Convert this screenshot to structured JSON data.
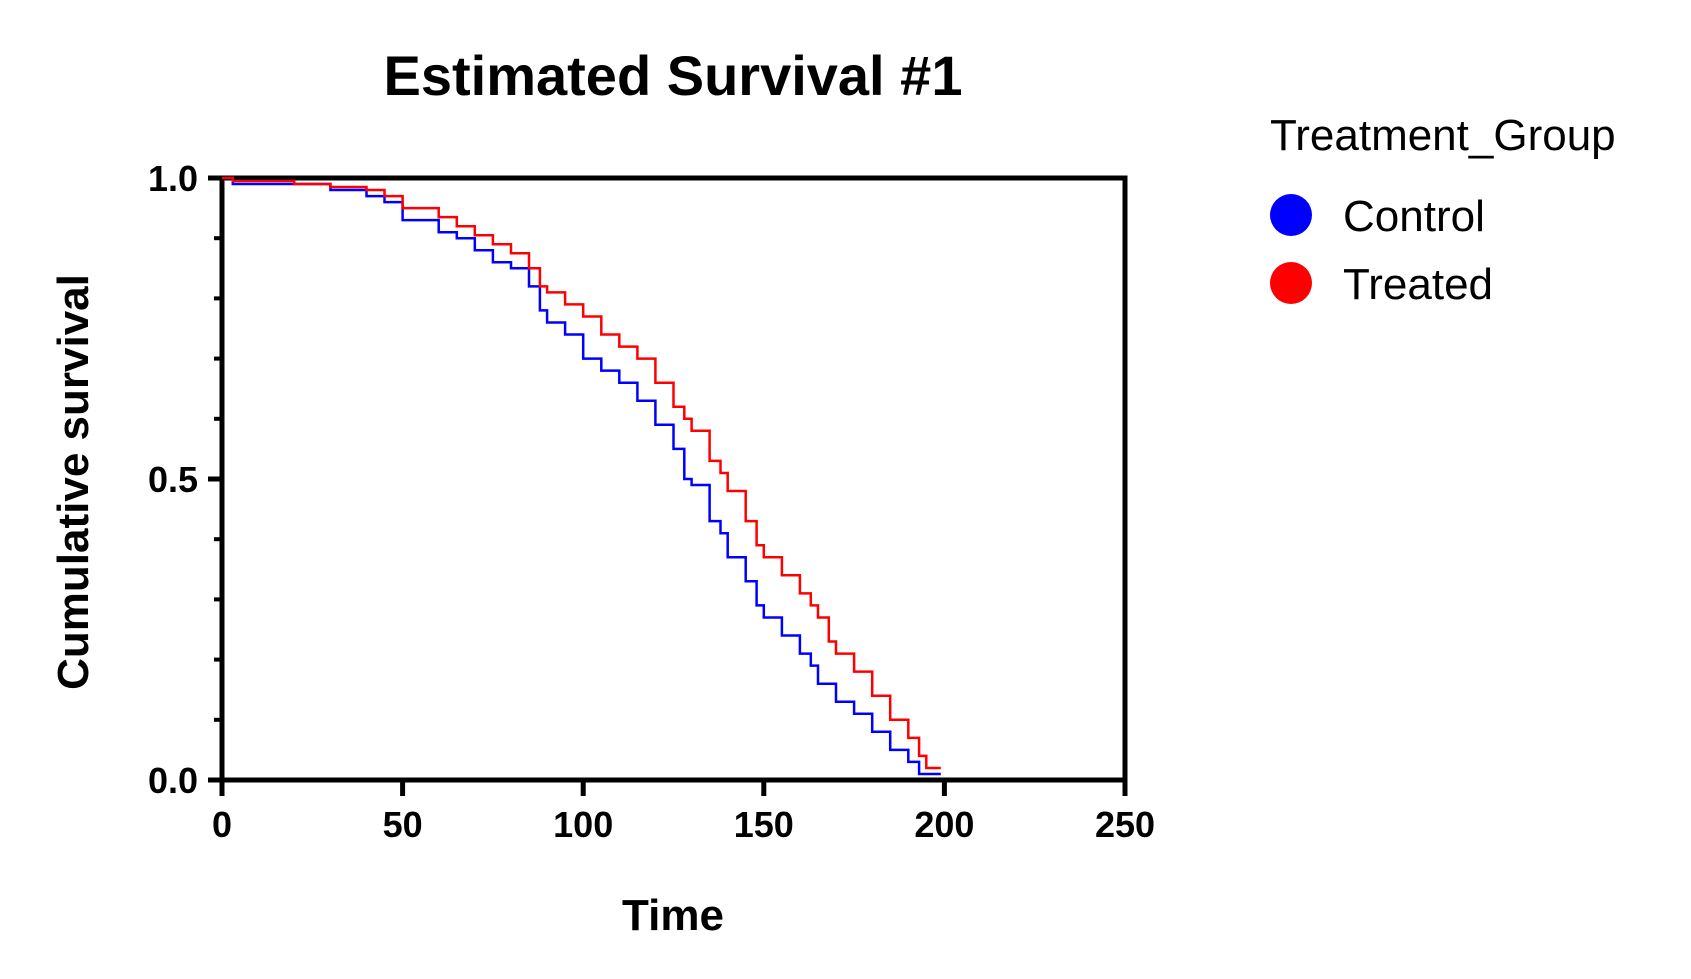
{
  "chart_data": {
    "type": "line",
    "title": "Estimated Survival #1",
    "xlabel": "Time",
    "ylabel": "Cumulative survival",
    "xlim": [
      0,
      250
    ],
    "ylim": [
      0,
      1
    ],
    "x_ticks": [
      "0",
      "50",
      "100",
      "150",
      "200",
      "250"
    ],
    "y_ticks": [
      "0.0",
      "0.5",
      "1.0"
    ],
    "grid": false,
    "legend": {
      "title": "Treatment_Group",
      "position": "right",
      "entries": [
        {
          "label": "Control",
          "color": "#0000ff"
        },
        {
          "label": "Treated",
          "color": "#ff0000"
        }
      ]
    },
    "series": [
      {
        "name": "Control",
        "color": "#0000ff",
        "points": [
          [
            0,
            1.0
          ],
          [
            3,
            0.99
          ],
          [
            20,
            0.99
          ],
          [
            30,
            0.98
          ],
          [
            40,
            0.97
          ],
          [
            45,
            0.96
          ],
          [
            50,
            0.93
          ],
          [
            60,
            0.91
          ],
          [
            65,
            0.9
          ],
          [
            70,
            0.88
          ],
          [
            75,
            0.86
          ],
          [
            80,
            0.85
          ],
          [
            85,
            0.82
          ],
          [
            88,
            0.78
          ],
          [
            90,
            0.76
          ],
          [
            95,
            0.74
          ],
          [
            100,
            0.7
          ],
          [
            105,
            0.68
          ],
          [
            110,
            0.66
          ],
          [
            115,
            0.63
          ],
          [
            120,
            0.59
          ],
          [
            125,
            0.55
          ],
          [
            128,
            0.5
          ],
          [
            130,
            0.49
          ],
          [
            135,
            0.43
          ],
          [
            138,
            0.41
          ],
          [
            140,
            0.37
          ],
          [
            145,
            0.33
          ],
          [
            148,
            0.29
          ],
          [
            150,
            0.27
          ],
          [
            155,
            0.24
          ],
          [
            160,
            0.21
          ],
          [
            163,
            0.19
          ],
          [
            165,
            0.16
          ],
          [
            170,
            0.13
          ],
          [
            175,
            0.11
          ],
          [
            180,
            0.08
          ],
          [
            185,
            0.05
          ],
          [
            190,
            0.03
          ],
          [
            193,
            0.01
          ],
          [
            199,
            0.01
          ]
        ]
      },
      {
        "name": "Treated",
        "color": "#ff0000",
        "points": [
          [
            0,
            1.0
          ],
          [
            3,
            0.995
          ],
          [
            20,
            0.99
          ],
          [
            30,
            0.985
          ],
          [
            40,
            0.98
          ],
          [
            45,
            0.97
          ],
          [
            50,
            0.95
          ],
          [
            60,
            0.935
          ],
          [
            65,
            0.92
          ],
          [
            70,
            0.905
          ],
          [
            75,
            0.89
          ],
          [
            80,
            0.875
          ],
          [
            85,
            0.85
          ],
          [
            88,
            0.82
          ],
          [
            90,
            0.81
          ],
          [
            95,
            0.79
          ],
          [
            100,
            0.77
          ],
          [
            105,
            0.74
          ],
          [
            110,
            0.72
          ],
          [
            115,
            0.7
          ],
          [
            120,
            0.66
          ],
          [
            125,
            0.62
          ],
          [
            128,
            0.6
          ],
          [
            130,
            0.58
          ],
          [
            135,
            0.53
          ],
          [
            138,
            0.51
          ],
          [
            140,
            0.48
          ],
          [
            145,
            0.43
          ],
          [
            148,
            0.39
          ],
          [
            150,
            0.37
          ],
          [
            155,
            0.34
          ],
          [
            160,
            0.31
          ],
          [
            163,
            0.29
          ],
          [
            165,
            0.27
          ],
          [
            168,
            0.23
          ],
          [
            170,
            0.21
          ],
          [
            175,
            0.18
          ],
          [
            180,
            0.14
          ],
          [
            185,
            0.1
          ],
          [
            190,
            0.07
          ],
          [
            193,
            0.04
          ],
          [
            195,
            0.02
          ],
          [
            199,
            0.02
          ]
        ]
      }
    ]
  }
}
